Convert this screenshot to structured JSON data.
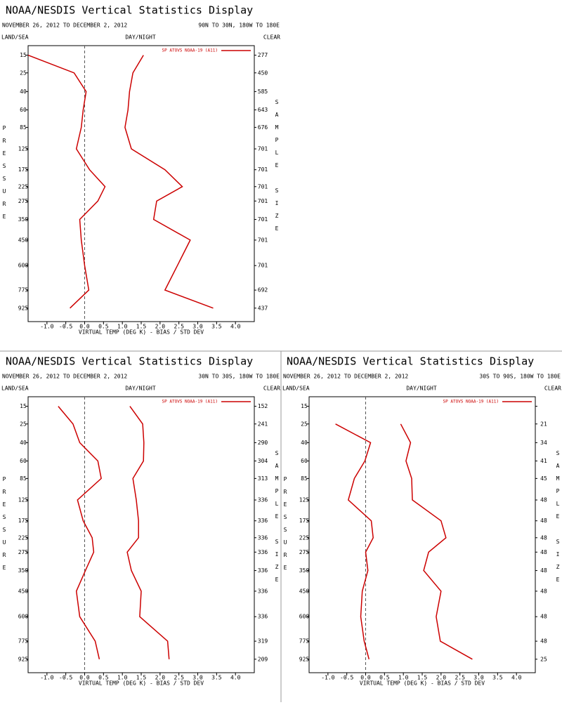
{
  "chart_data": [
    {
      "type": "line",
      "title": "NOAA/NESDIS Vertical Statistics Display",
      "subtitle": "NOVEMBER 26, 2012 TO DECEMBER 2, 2012",
      "region": "90N TO 30N, 180W TO 180E",
      "left_header": "LAND/SEA",
      "center_header": "DAY/NIGHT",
      "right_header": "CLEAR",
      "legend": "SP ATOVS NOAA-19 (A11)",
      "xlabel": "VIRTUAL TEMP (DEG K) - BIAS / STD DEV",
      "ylabel": "PRESSURE",
      "y2label": "SAMPLE SIZE",
      "y": [
        15,
        25,
        40,
        60,
        85,
        125,
        175,
        225,
        275,
        350,
        450,
        600,
        775,
        925
      ],
      "y2_labels": [
        277,
        450,
        585,
        643,
        676,
        701,
        701,
        701,
        701,
        701,
        701,
        701,
        692,
        437
      ],
      "series": [
        {
          "color": "#cc0000",
          "values": [
            -1.5,
            -0.28,
            0.04,
            -0.04,
            -0.09,
            -0.22,
            0.13,
            0.54,
            0.35,
            -0.13,
            -0.09,
            0.0,
            0.11,
            -0.39
          ]
        },
        {
          "color": "#cc0000",
          "values": [
            1.56,
            1.28,
            1.19,
            1.15,
            1.07,
            1.24,
            2.13,
            2.59,
            1.91,
            1.83,
            2.8,
            2.46,
            2.13,
            3.41
          ]
        }
      ],
      "xlim": [
        -1.5,
        4.5
      ],
      "xticks": [
        {
          "value": -1,
          "label": "-1.0"
        },
        -0.5,
        {
          "value": 0,
          "label": "0.0"
        },
        0.5,
        {
          "value": 1,
          "label": "1.0"
        },
        1.5,
        {
          "value": 2,
          "label": "2.0"
        },
        2.5,
        {
          "value": 3,
          "label": "3.0"
        },
        3.5,
        {
          "value": 4,
          "label": "4.0"
        }
      ],
      "ylim": [
        11,
        1050
      ],
      "yticks": [
        15,
        25,
        40,
        60,
        85,
        125,
        175,
        225,
        275,
        350,
        450,
        600,
        775,
        925
      ],
      "yscale": "power",
      "yscale_exponent": 0.286,
      "y_inverted": true,
      "vline": 0
    },
    {
      "type": "line",
      "title": "NOAA/NESDIS Vertical Statistics Display",
      "subtitle": "NOVEMBER 26, 2012 TO DECEMBER 2, 2012",
      "region": "30N TO 30S, 180W TO 180E",
      "left_header": "LAND/SEA",
      "center_header": "DAY/NIGHT",
      "right_header": "CLEAR",
      "legend": "SP ATOVS NOAA-19 (A11)",
      "xlabel": "VIRTUAL TEMP (DEG K) - BIAS / STD DEV",
      "ylabel": "PRESSURE",
      "y2label": "SAMPLE SIZE",
      "y": [
        15,
        25,
        40,
        60,
        85,
        125,
        175,
        225,
        275,
        350,
        450,
        600,
        775,
        925
      ],
      "y2_labels": [
        152,
        241,
        290,
        304,
        313,
        336,
        336,
        336,
        336,
        336,
        336,
        336,
        319,
        209
      ],
      "series": [
        {
          "color": "#cc0000",
          "values": [
            -0.7,
            -0.31,
            -0.13,
            0.35,
            0.44,
            -0.19,
            -0.04,
            0.2,
            0.24,
            0.02,
            -0.22,
            -0.13,
            0.28,
            0.39
          ]
        },
        {
          "color": "#cc0000",
          "values": [
            1.2,
            1.54,
            1.57,
            1.56,
            1.28,
            1.37,
            1.43,
            1.43,
            1.13,
            1.24,
            1.5,
            1.46,
            2.2,
            2.24
          ]
        }
      ],
      "xlim": [
        -1.5,
        4.5
      ],
      "xticks": [
        {
          "value": -1,
          "label": "-1.0"
        },
        -0.5,
        {
          "value": 0,
          "label": "0.0"
        },
        0.5,
        {
          "value": 1,
          "label": "1.0"
        },
        1.5,
        {
          "value": 2,
          "label": "2.0"
        },
        2.5,
        {
          "value": 3,
          "label": "3.0"
        },
        3.5,
        {
          "value": 4,
          "label": "4.0"
        }
      ],
      "ylim": [
        11,
        1050
      ],
      "yticks": [
        15,
        25,
        40,
        60,
        85,
        125,
        175,
        225,
        275,
        350,
        450,
        600,
        775,
        925
      ],
      "yscale": "power",
      "yscale_exponent": 0.286,
      "y_inverted": true,
      "vline": 0
    },
    {
      "type": "line",
      "title": "NOAA/NESDIS Vertical Statistics Display",
      "subtitle": "NOVEMBER 26, 2012 TO DECEMBER 2, 2012",
      "region": "30S TO 90S, 180W TO 180E",
      "left_header": "LAND/SEA",
      "center_header": "DAY/NIGHT",
      "right_header": "CLEAR",
      "legend": "SP ATOVS NOAA-19 (A11)",
      "xlabel": "VIRTUAL TEMP (DEG K) - BIAS / STD DEV",
      "ylabel": "PRESSURE",
      "y2label": "SAMPLE SIZE",
      "y": [
        15,
        25,
        40,
        60,
        85,
        125,
        175,
        225,
        275,
        350,
        450,
        600,
        775,
        925
      ],
      "y2_labels": [
        null,
        21,
        34,
        41,
        45,
        48,
        48,
        48,
        48,
        48,
        48,
        48,
        48,
        25
      ],
      "series": [
        {
          "color": "#cc0000",
          "values": [
            null,
            -0.8,
            0.13,
            -0.02,
            -0.3,
            -0.46,
            0.15,
            0.2,
            0.0,
            0.06,
            -0.09,
            -0.13,
            -0.04,
            0.09
          ]
        },
        {
          "color": "#cc0000",
          "values": [
            null,
            0.93,
            1.19,
            1.07,
            1.22,
            1.24,
            2.0,
            2.13,
            1.67,
            1.54,
            2.0,
            1.87,
            1.98,
            2.83
          ]
        }
      ],
      "xlim": [
        -1.5,
        4.5
      ],
      "xticks": [
        {
          "value": -1,
          "label": "-1.0"
        },
        -0.5,
        {
          "value": 0,
          "label": "0.0"
        },
        0.5,
        {
          "value": 1,
          "label": "1.0"
        },
        1.5,
        {
          "value": 2,
          "label": "2.0"
        },
        2.5,
        {
          "value": 3,
          "label": "3.0"
        },
        3.5,
        {
          "value": 4,
          "label": "4.0"
        }
      ],
      "ylim": [
        11,
        1050
      ],
      "yticks": [
        15,
        25,
        40,
        60,
        85,
        125,
        175,
        225,
        275,
        350,
        450,
        600,
        775,
        925
      ],
      "yscale": "power",
      "yscale_exponent": 0.286,
      "y_inverted": true,
      "vline": 0
    }
  ]
}
